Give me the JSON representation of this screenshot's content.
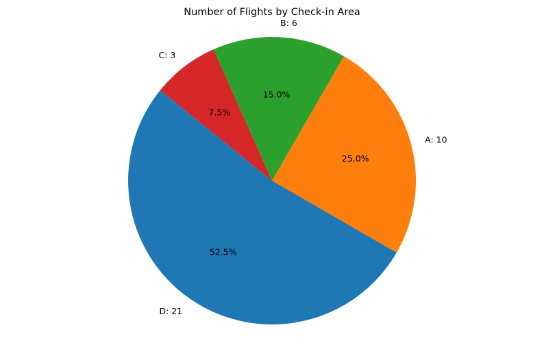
{
  "chart_data": {
    "type": "pie",
    "title": "Number of Flights by Check-in Area",
    "categories": [
      "A",
      "B",
      "C",
      "D"
    ],
    "values": [
      10,
      6,
      3,
      21
    ],
    "slice_labels": [
      "A: 10",
      "B: 6",
      "C: 3",
      "D: 21"
    ],
    "percent_labels": [
      "25.0%",
      "15.0%",
      "7.5%",
      "52.5%"
    ],
    "colors": [
      "#ff7f0e",
      "#2ca02c",
      "#d62728",
      "#1f77b4"
    ],
    "start_angle_deg": -30,
    "direction": "counterclockwise",
    "legend": "none"
  }
}
